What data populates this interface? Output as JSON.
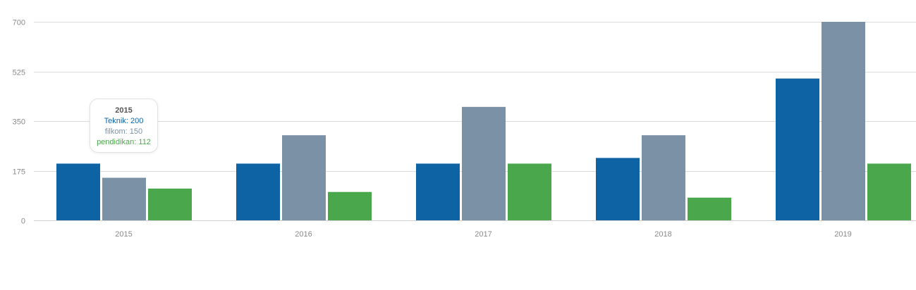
{
  "chart_data": {
    "type": "bar",
    "categories": [
      "2015",
      "2016",
      "2017",
      "2018",
      "2019"
    ],
    "series": [
      {
        "name": "Teknik",
        "color": "#0e63a4",
        "values": [
          200,
          200,
          200,
          220,
          500
        ]
      },
      {
        "name": "filkom",
        "color": "#7b91a5",
        "values": [
          150,
          300,
          400,
          300,
          700
        ]
      },
      {
        "name": "pendidikan",
        "color": "#4aa74c",
        "values": [
          112,
          100,
          200,
          80,
          200
        ]
      }
    ],
    "ylim": [
      0,
      700
    ],
    "yticks": [
      0,
      175,
      350,
      525,
      700
    ],
    "grid": true,
    "title": "",
    "xlabel": "",
    "ylabel": ""
  },
  "tooltip": {
    "title": "2015",
    "rows": [
      {
        "label": "Teknik: 200",
        "color": "#0e63a4"
      },
      {
        "label": "filkom: 150",
        "color": "#7b91a5"
      },
      {
        "label": "pendidikan: 112",
        "color": "#4aa74c"
      }
    ]
  }
}
